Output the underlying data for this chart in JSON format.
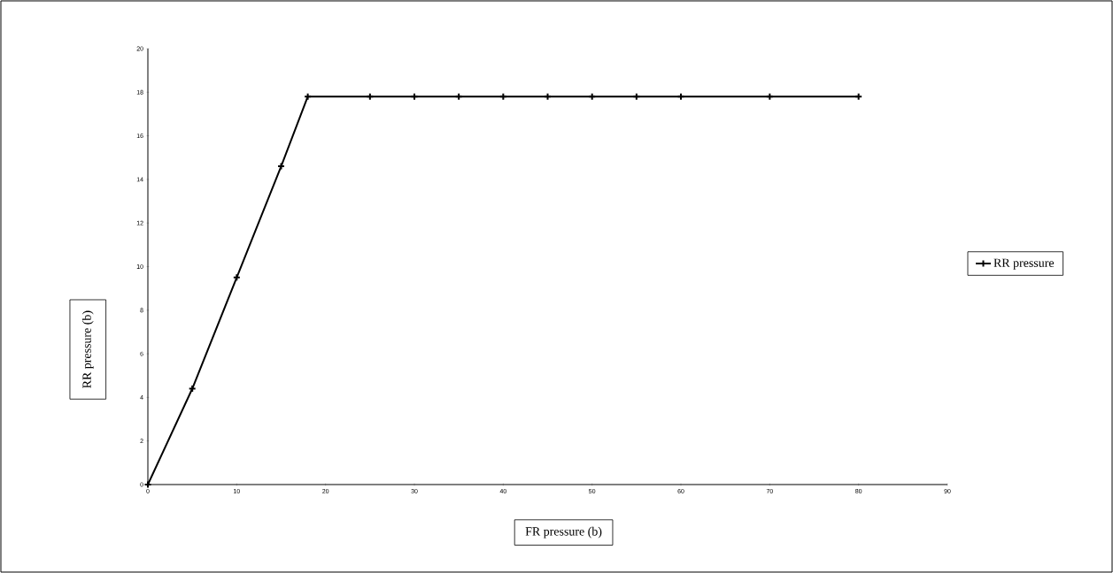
{
  "chart_data": {
    "type": "line",
    "xlabel": "FR pressure (b)",
    "ylabel": "RR pressure (b)",
    "xlim": [
      0,
      90
    ],
    "xticks": [
      0,
      10,
      20,
      30,
      40,
      50,
      60,
      70,
      80,
      90
    ],
    "ylim": [
      0,
      20
    ],
    "yticks": [
      0,
      2,
      4,
      6,
      8,
      10,
      12,
      14,
      16,
      18,
      20
    ],
    "series": [
      {
        "name": "RR pressure",
        "color": "#000000",
        "x": [
          0,
          5,
          10,
          15,
          18,
          25,
          30,
          35,
          40,
          45,
          50,
          55,
          60,
          70,
          80
        ],
        "values": [
          0,
          4.4,
          9.5,
          14.6,
          17.8,
          17.8,
          17.8,
          17.8,
          17.8,
          17.8,
          17.8,
          17.8,
          17.8,
          17.8,
          17.8
        ]
      }
    ],
    "marker": "cross",
    "legend": "right",
    "grid": false
  }
}
